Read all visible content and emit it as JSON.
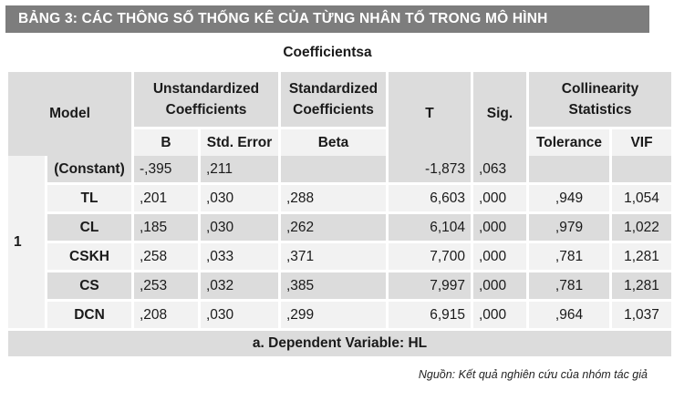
{
  "title": "BẢNG 3: CÁC THÔNG SỐ THỐNG KÊ CỦA TỪNG NHÂN TỐ TRONG MÔ HÌNH",
  "caption": "Coefficientsa",
  "headers": {
    "model": "Model",
    "unstandardized": "Unstandardized Coefficients",
    "standardized": "Standardized Coefficients",
    "t": "T",
    "sig": "Sig.",
    "collinearity": "Collinearity Statistics",
    "b": "B",
    "std_error": "Std. Error",
    "beta": "Beta",
    "tolerance": "Tolerance",
    "vif": "VIF"
  },
  "model_number": "1",
  "rows": [
    {
      "name": "(Constant)",
      "b": "-,395",
      "std_error": ",211",
      "beta": "",
      "t": "-1,873",
      "sig": ",063",
      "tolerance": "",
      "vif": ""
    },
    {
      "name": "TL",
      "b": ",201",
      "std_error": ",030",
      "beta": ",288",
      "t": "6,603",
      "sig": ",000",
      "tolerance": ",949",
      "vif": "1,054"
    },
    {
      "name": "CL",
      "b": ",185",
      "std_error": ",030",
      "beta": ",262",
      "t": "6,104",
      "sig": ",000",
      "tolerance": ",979",
      "vif": "1,022"
    },
    {
      "name": "CSKH",
      "b": ",258",
      "std_error": ",033",
      "beta": ",371",
      "t": "7,700",
      "sig": ",000",
      "tolerance": ",781",
      "vif": "1,281"
    },
    {
      "name": "CS",
      "b": ",253",
      "std_error": ",032",
      "beta": ",385",
      "t": "7,997",
      "sig": ",000",
      "tolerance": ",781",
      "vif": "1,281"
    },
    {
      "name": "DCN",
      "b": ",208",
      "std_error": ",030",
      "beta": ",299",
      "t": "6,915",
      "sig": ",000",
      "tolerance": ",964",
      "vif": "1,037"
    }
  ],
  "footnote": "a. Dependent Variable: HL",
  "source": "Nguồn: Kết quả nghiên cứu của nhóm tác giả",
  "colors": {
    "title_bg": "#7d7d7d",
    "dark_cell": "#dcdcdc",
    "light_cell": "#f2f2f2"
  }
}
